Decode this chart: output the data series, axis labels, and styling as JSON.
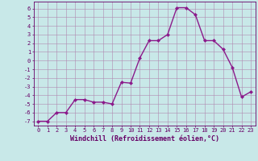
{
  "x": [
    0,
    1,
    2,
    3,
    4,
    5,
    6,
    7,
    8,
    9,
    10,
    11,
    12,
    13,
    14,
    15,
    16,
    17,
    18,
    19,
    20,
    21,
    22,
    23
  ],
  "y": [
    -7,
    -7,
    -6,
    -6,
    -4.5,
    -4.5,
    -4.8,
    -4.8,
    -5,
    -2.5,
    -2.6,
    0.3,
    2.3,
    2.3,
    3,
    6.1,
    6.1,
    5.3,
    2.3,
    2.3,
    1.3,
    -0.8,
    -4.2,
    -3.6
  ],
  "line_color": "#8B1A8B",
  "marker": "D",
  "marker_size": 2.0,
  "linewidth": 1.0,
  "xlabel": "Windchill (Refroidissement éolien,°C)",
  "xlabel_fontsize": 6,
  "xlim": [
    -0.5,
    23.5
  ],
  "ylim": [
    -7.5,
    6.8
  ],
  "yticks": [
    -7,
    -6,
    -5,
    -4,
    -3,
    -2,
    -1,
    0,
    1,
    2,
    3,
    4,
    5,
    6
  ],
  "xticks": [
    0,
    1,
    2,
    3,
    4,
    5,
    6,
    7,
    8,
    9,
    10,
    11,
    12,
    13,
    14,
    15,
    16,
    17,
    18,
    19,
    20,
    21,
    22,
    23
  ],
  "grid_color": "#b088b0",
  "bg_color": "#c8e8e8",
  "tick_color": "#660066",
  "tick_fontsize": 5.0,
  "xlabel_color": "#660066"
}
